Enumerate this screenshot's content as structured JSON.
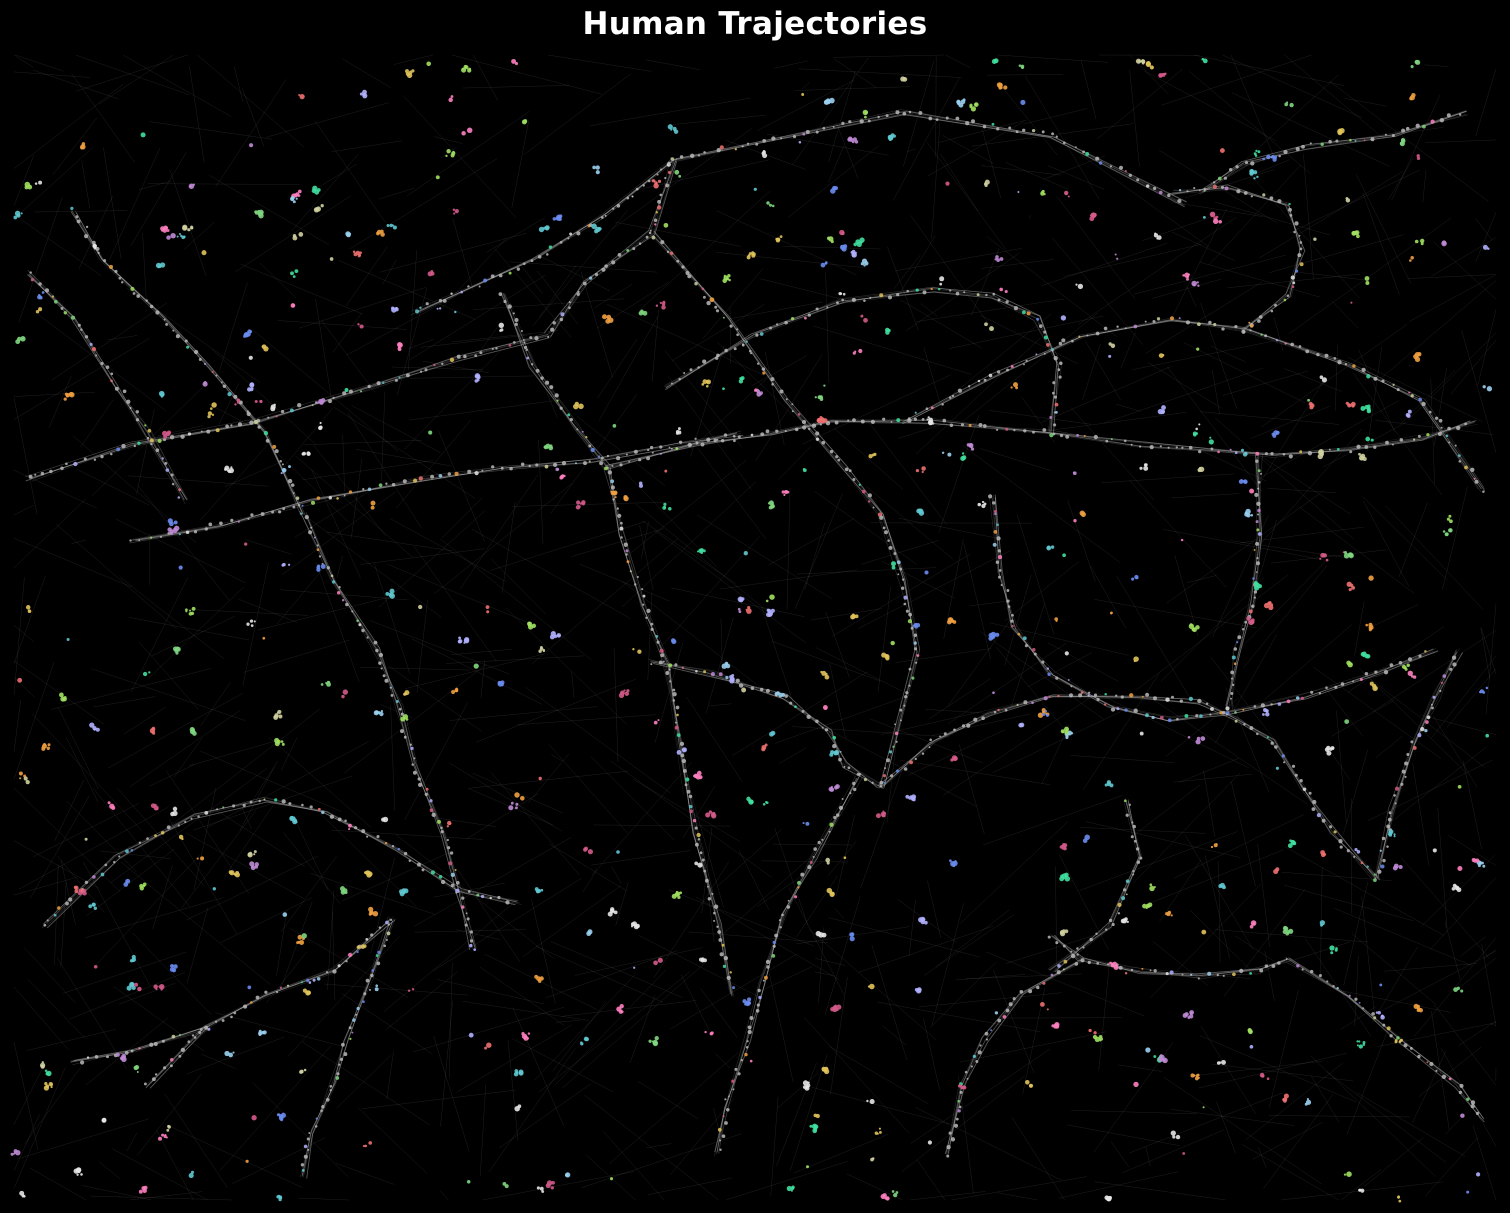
{
  "chart_data": {
    "type": "scatter",
    "title": "Human Trajectories",
    "xlabel": "",
    "ylabel": "",
    "axes_visible": false,
    "grid": false,
    "legend": "none",
    "background_color": "#000000",
    "link_color": "#bfbfbf",
    "node_color": "#b8b8b8",
    "xlim": [
      0,
      1000
    ],
    "ylim": [
      0,
      1000
    ],
    "series": [
      {
        "kind": "corridor",
        "points": [
          [
            10,
            370
          ],
          [
            80,
            340
          ],
          [
            160,
            320
          ],
          [
            240,
            290
          ],
          [
            300,
            265
          ],
          [
            360,
            245
          ]
        ]
      },
      {
        "kind": "corridor",
        "points": [
          [
            360,
            245
          ],
          [
            385,
            200
          ],
          [
            430,
            155
          ],
          [
            445,
            92
          ]
        ]
      },
      {
        "kind": "corridor",
        "points": [
          [
            270,
            225
          ],
          [
            350,
            180
          ],
          [
            400,
            140
          ],
          [
            445,
            92
          ],
          [
            600,
            50
          ],
          [
            700,
            70
          ],
          [
            790,
            130
          ]
        ]
      },
      {
        "kind": "corridor",
        "points": [
          [
            40,
            135
          ],
          [
            60,
            180
          ],
          [
            100,
            230
          ],
          [
            130,
            270
          ],
          [
            170,
            330
          ],
          [
            195,
            400
          ]
        ]
      },
      {
        "kind": "corridor",
        "points": [
          [
            195,
            400
          ],
          [
            215,
            460
          ],
          [
            245,
            520
          ],
          [
            260,
            570
          ],
          [
            270,
            620
          ],
          [
            290,
            680
          ],
          [
            300,
            730
          ],
          [
            310,
            780
          ]
        ]
      },
      {
        "kind": "corridor",
        "points": [
          [
            80,
            425
          ],
          [
            140,
            410
          ],
          [
            200,
            390
          ],
          [
            275,
            370
          ],
          [
            330,
            360
          ],
          [
            390,
            355
          ],
          [
            450,
            340
          ],
          [
            490,
            330
          ]
        ]
      },
      {
        "kind": "corridor",
        "points": [
          [
            330,
            210
          ],
          [
            350,
            270
          ],
          [
            380,
            325
          ],
          [
            400,
            360
          ],
          [
            410,
            420
          ],
          [
            425,
            480
          ],
          [
            440,
            530
          ],
          [
            450,
            600
          ],
          [
            460,
            680
          ],
          [
            475,
            760
          ],
          [
            485,
            820
          ]
        ]
      },
      {
        "kind": "corridor",
        "points": [
          [
            430,
            530
          ],
          [
            470,
            540
          ],
          [
            520,
            560
          ],
          [
            550,
            590
          ],
          [
            560,
            620
          ],
          [
            585,
            640
          ]
        ]
      },
      {
        "kind": "corridor",
        "points": [
          [
            400,
            360
          ],
          [
            460,
            340
          ],
          [
            510,
            330
          ],
          [
            550,
            320
          ],
          [
            620,
            320
          ],
          [
            700,
            330
          ],
          [
            760,
            340
          ],
          [
            850,
            350
          ],
          [
            900,
            345
          ],
          [
            950,
            335
          ],
          [
            985,
            320
          ]
        ]
      },
      {
        "kind": "corridor",
        "points": [
          [
            660,
            385
          ],
          [
            665,
            450
          ],
          [
            675,
            500
          ],
          [
            700,
            540
          ],
          [
            740,
            570
          ],
          [
            780,
            580
          ],
          [
            820,
            575
          ],
          [
            870,
            560
          ],
          [
            920,
            540
          ],
          [
            960,
            520
          ]
        ]
      },
      {
        "kind": "corridor",
        "points": [
          [
            585,
            640
          ],
          [
            620,
            600
          ],
          [
            660,
            575
          ],
          [
            700,
            560
          ],
          [
            760,
            560
          ],
          [
            800,
            565
          ],
          [
            825,
            580
          ],
          [
            850,
            600
          ],
          [
            870,
            640
          ],
          [
            890,
            680
          ],
          [
            920,
            720
          ]
        ]
      },
      {
        "kind": "corridor",
        "points": [
          [
            570,
            630
          ],
          [
            540,
            700
          ],
          [
            520,
            750
          ],
          [
            505,
            810
          ],
          [
            495,
            860
          ],
          [
            480,
            920
          ],
          [
            475,
            960
          ]
        ]
      },
      {
        "kind": "corridor",
        "points": [
          [
            255,
            755
          ],
          [
            240,
            810
          ],
          [
            225,
            860
          ],
          [
            215,
            900
          ],
          [
            200,
            940
          ],
          [
            195,
            980
          ]
        ]
      },
      {
        "kind": "corridor",
        "points": [
          [
            20,
            760
          ],
          [
            70,
            700
          ],
          [
            120,
            665
          ],
          [
            170,
            650
          ],
          [
            210,
            660
          ],
          [
            260,
            695
          ],
          [
            300,
            730
          ],
          [
            340,
            740
          ]
        ]
      },
      {
        "kind": "corridor",
        "points": [
          [
            700,
            770
          ],
          [
            720,
            790
          ],
          [
            760,
            800
          ],
          [
            800,
            805
          ],
          [
            840,
            800
          ],
          [
            860,
            790
          ]
        ]
      },
      {
        "kind": "corridor",
        "points": [
          [
            820,
            570
          ],
          [
            825,
            520
          ],
          [
            835,
            480
          ],
          [
            840,
            420
          ],
          [
            840,
            350
          ]
        ]
      },
      {
        "kind": "corridor",
        "points": [
          [
            830,
            240
          ],
          [
            860,
            210
          ],
          [
            870,
            170
          ],
          [
            860,
            130
          ],
          [
            820,
            115
          ],
          [
            780,
            120
          ]
        ]
      },
      {
        "kind": "corridor",
        "points": [
          [
            430,
            155
          ],
          [
            480,
            230
          ],
          [
            520,
            300
          ],
          [
            560,
            360
          ],
          [
            585,
            400
          ],
          [
            600,
            460
          ],
          [
            610,
            520
          ],
          [
            585,
            640
          ]
        ]
      },
      {
        "kind": "corridor",
        "points": [
          [
            700,
            330
          ],
          [
            705,
            270
          ],
          [
            690,
            230
          ],
          [
            660,
            210
          ],
          [
            620,
            205
          ],
          [
            560,
            215
          ],
          [
            500,
            245
          ],
          [
            440,
            290
          ]
        ]
      },
      {
        "kind": "corridor",
        "points": [
          [
            630,
            960
          ],
          [
            640,
            900
          ],
          [
            655,
            860
          ],
          [
            680,
            820
          ],
          [
            720,
            790
          ]
        ]
      },
      {
        "kind": "corridor",
        "points": [
          [
            990,
            380
          ],
          [
            950,
            300
          ],
          [
            900,
            270
          ],
          [
            830,
            240
          ],
          [
            780,
            230
          ],
          [
            720,
            245
          ],
          [
            660,
            280
          ],
          [
            600,
            320
          ]
        ]
      },
      {
        "kind": "corridor",
        "points": [
          [
            860,
            790
          ],
          [
            900,
            820
          ],
          [
            935,
            860
          ],
          [
            975,
            900
          ],
          [
            990,
            930
          ]
        ]
      },
      {
        "kind": "corridor",
        "points": [
          [
            90,
            900
          ],
          [
            130,
            850
          ],
          [
            170,
            820
          ],
          [
            215,
            800
          ],
          [
            255,
            755
          ]
        ]
      },
      {
        "kind": "corridor",
        "points": [
          [
            130,
            850
          ],
          [
            80,
            870
          ],
          [
            40,
            880
          ]
        ]
      },
      {
        "kind": "corridor",
        "points": [
          [
            920,
            720
          ],
          [
            930,
            660
          ],
          [
            945,
            600
          ],
          [
            960,
            560
          ],
          [
            975,
            520
          ]
        ]
      },
      {
        "kind": "corridor",
        "points": [
          [
            800,
            120
          ],
          [
            830,
            95
          ],
          [
            870,
            80
          ],
          [
            930,
            70
          ],
          [
            980,
            50
          ]
        ]
      },
      {
        "kind": "corridor",
        "points": [
          [
            10,
            190
          ],
          [
            40,
            230
          ],
          [
            70,
            290
          ],
          [
            90,
            330
          ],
          [
            115,
            390
          ]
        ]
      },
      {
        "kind": "corridor",
        "points": [
          [
            750,
            650
          ],
          [
            760,
            700
          ],
          [
            740,
            760
          ],
          [
            700,
            800
          ]
        ]
      }
    ]
  }
}
